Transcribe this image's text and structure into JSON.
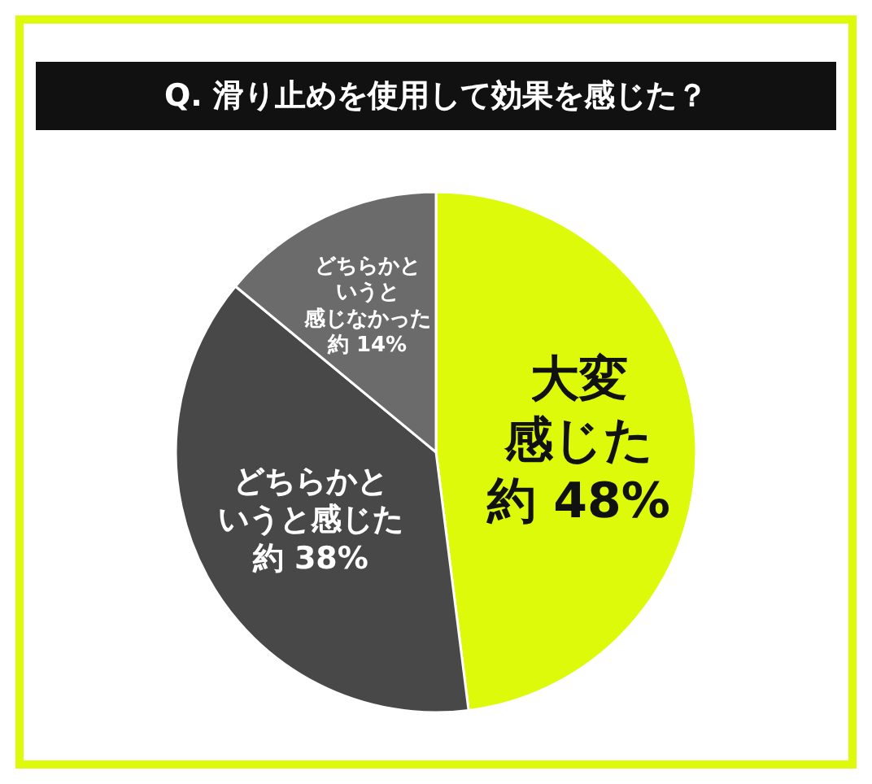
{
  "chart_data": {
    "type": "pie",
    "title": "Q. 滑り止めを使用して効果を感じた？",
    "categories": [
      "大変感じた",
      "どちらかというと感じた",
      "どちらかというと感じなかった"
    ],
    "values": [
      48,
      38,
      14
    ],
    "colors": [
      "#dcfa0a",
      "#484848",
      "#6b6b6b"
    ],
    "value_labels": [
      "約 48%",
      "約 38%",
      "約 14%"
    ]
  }
}
